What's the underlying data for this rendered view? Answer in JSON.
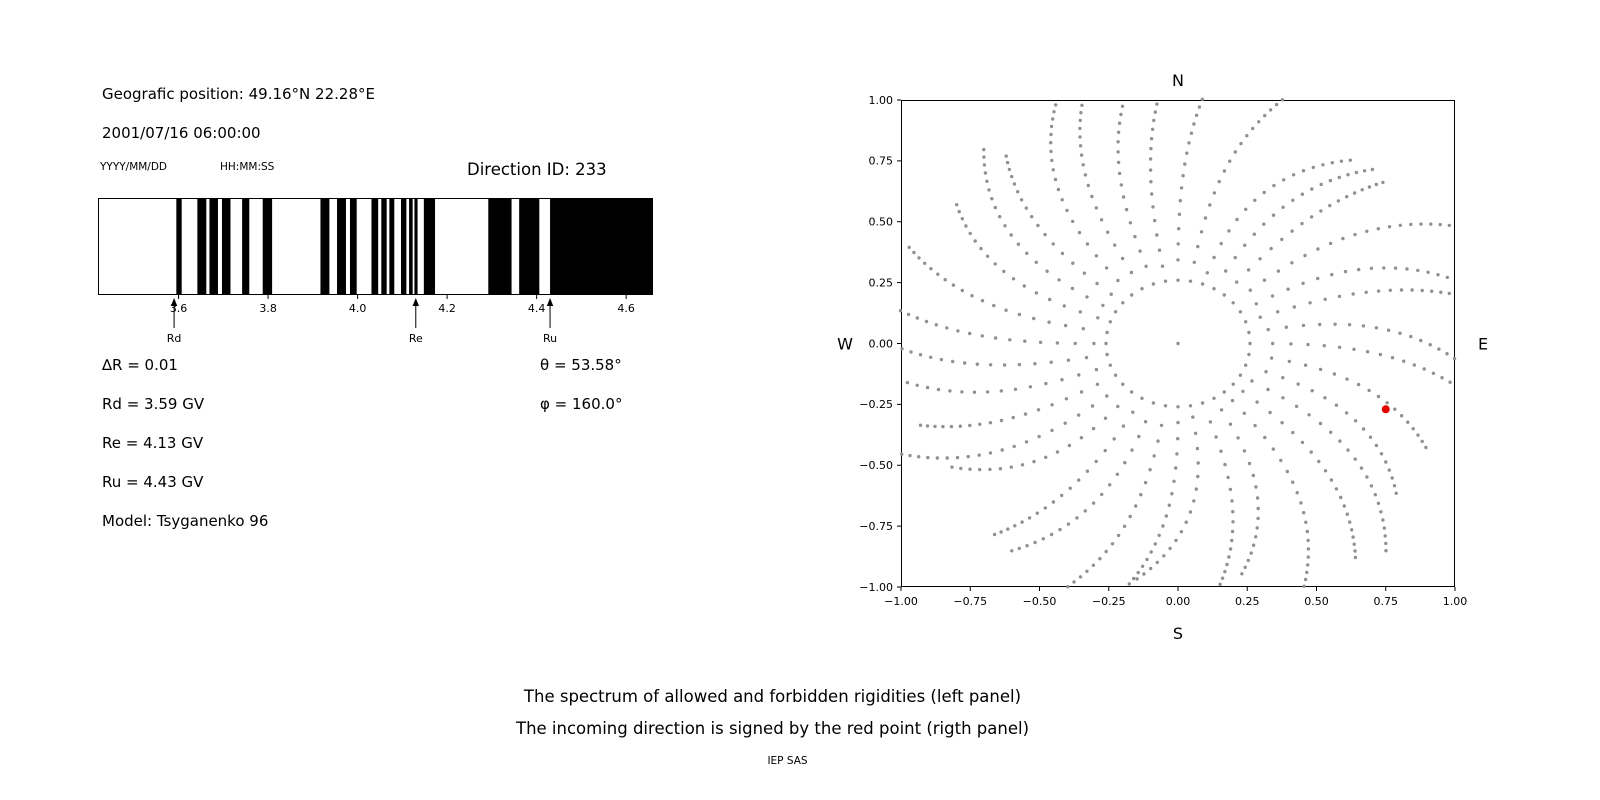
{
  "info_panel": {
    "geographic_position": "Geografic position: 49.16°N 22.28°E",
    "datetime": "2001/07/16 06:00:00",
    "date_format": "YYYY/MM/DD",
    "time_format": "HH:MM:SS",
    "direction_id": "Direction ID: 233",
    "delta_r": "∆R = 0.01",
    "rd": "Rd = 3.59 GV",
    "re": "Re = 4.13 GV",
    "ru": "Ru = 4.43 GV",
    "model": "Model: Tsyganenko 96",
    "theta": "θ = 53.58°",
    "phi": "φ = 160.0°"
  },
  "caption": {
    "line1": "The spectrum of allowed and forbidden rigidities (left panel)",
    "line2": "The incoming direction is signed by the red point (rigth panel)",
    "footer": "IEP SAS"
  },
  "chart_data": [
    {
      "id": "rigidity-spectrum",
      "type": "bar",
      "title": "Direction ID: 233",
      "xlabel": "",
      "ylabel": "",
      "xlim": [
        3.42,
        4.66
      ],
      "xticks": [
        "3.6",
        "3.8",
        "4.0",
        "4.2",
        "4.4",
        "4.6"
      ],
      "xtick_values": [
        3.6,
        3.8,
        4.0,
        4.2,
        4.4,
        4.6
      ],
      "bar_color": "#000000",
      "grid": false,
      "forbidden_bands": [
        [
          3.595,
          3.607
        ],
        [
          3.642,
          3.662
        ],
        [
          3.669,
          3.688
        ],
        [
          3.697,
          3.716
        ],
        [
          3.742,
          3.758
        ],
        [
          3.788,
          3.809
        ],
        [
          3.917,
          3.937
        ],
        [
          3.954,
          3.974
        ],
        [
          3.983,
          3.998
        ],
        [
          4.031,
          4.046
        ],
        [
          4.053,
          4.065
        ],
        [
          4.071,
          4.082
        ],
        [
          4.097,
          4.109
        ],
        [
          4.115,
          4.123
        ],
        [
          4.127,
          4.134
        ],
        [
          4.148,
          4.173
        ],
        [
          4.292,
          4.344
        ],
        [
          4.361,
          4.406
        ],
        [
          4.43,
          4.66
        ]
      ],
      "markers": [
        {
          "label": "Rd",
          "value": 3.59
        },
        {
          "label": "Re",
          "value": 4.13
        },
        {
          "label": "Ru",
          "value": 4.43
        }
      ]
    },
    {
      "id": "direction-map",
      "type": "scatter",
      "title": "",
      "xlabel": "S",
      "ylabel": "",
      "xlim": [
        -1,
        1
      ],
      "ylim": [
        -1,
        1
      ],
      "grid": false,
      "xticks": [
        "−1.00",
        "−0.75",
        "−0.50",
        "−0.25",
        "0.00",
        "0.25",
        "0.50",
        "0.75",
        "1.00"
      ],
      "xtick_values": [
        -1.0,
        -0.75,
        -0.5,
        -0.25,
        0.0,
        0.25,
        0.5,
        0.75,
        1.0
      ],
      "yticks": [
        "1.00",
        "0.75",
        "0.50",
        "0.25",
        "0.00",
        "−0.25",
        "−0.50",
        "−0.75",
        "−1.00"
      ],
      "ytick_values": [
        1.0,
        0.75,
        0.5,
        0.25,
        0.0,
        -0.25,
        -0.5,
        -0.75,
        -1.0
      ],
      "compass": {
        "top": "N",
        "bottom": "S",
        "left": "W",
        "right": "E"
      },
      "dot_color": "#909090",
      "red_point": {
        "x": 0.75,
        "y": -0.27,
        "color": "#e50000"
      },
      "pattern": {
        "spokes": 36,
        "r_inner": 0.3,
        "r_outer": 1.05,
        "curvature_deg": 14,
        "ring_radius": 0.26,
        "ring_count": 36,
        "center_dot": true
      }
    }
  ]
}
